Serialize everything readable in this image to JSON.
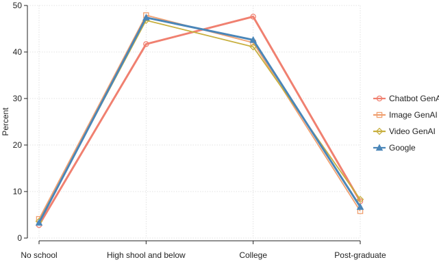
{
  "chart_data": {
    "type": "line",
    "title": "",
    "xlabel": "",
    "ylabel": "Percent",
    "categories": [
      "No school",
      "High shool and below",
      "College",
      "Post-graduate"
    ],
    "ylim": [
      0,
      50
    ],
    "yticks": [
      0,
      10,
      20,
      30,
      40,
      50
    ],
    "grid": true,
    "legend_position": "right",
    "series": [
      {
        "name": "Chatbot GenAI",
        "values": [
          2.8,
          41.7,
          47.6,
          7.9
        ],
        "color": "#f08070",
        "marker": "circle"
      },
      {
        "name": "Image GenAI",
        "values": [
          4.1,
          47.9,
          42.0,
          5.8
        ],
        "color": "#f0a070",
        "marker": "square"
      },
      {
        "name": "Video GenAI",
        "values": [
          3.6,
          46.8,
          41.1,
          8.3
        ],
        "color": "#c8b040",
        "marker": "diamond"
      },
      {
        "name": "Google",
        "values": [
          3.3,
          47.4,
          42.6,
          6.7
        ],
        "color": "#4a86b8",
        "marker": "triangle"
      }
    ]
  }
}
